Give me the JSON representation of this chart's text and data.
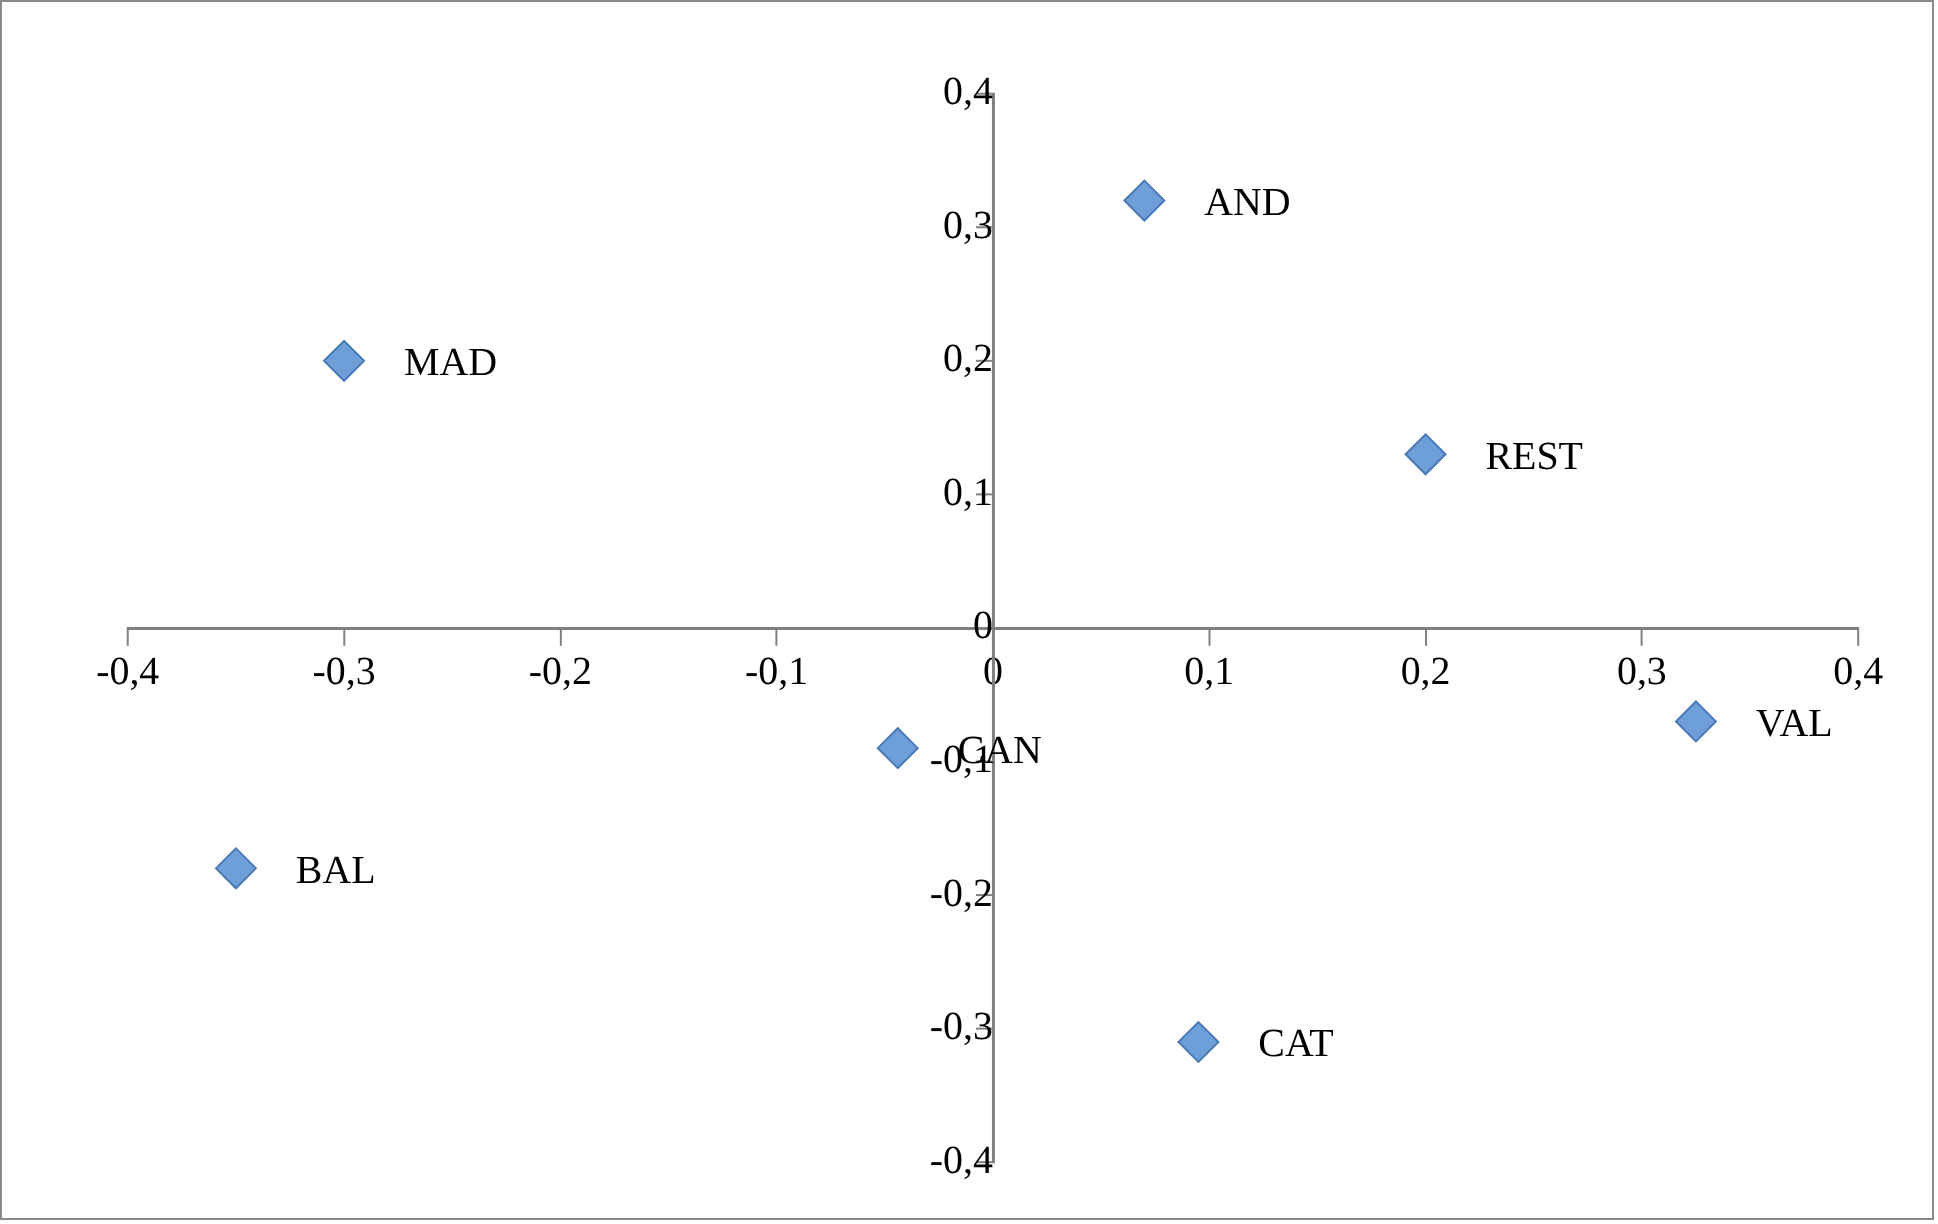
{
  "chart_data": {
    "type": "scatter",
    "x": [
      0.07,
      -0.3,
      0.2,
      -0.044,
      0.325,
      -0.35,
      0.095
    ],
    "values": [
      0.32,
      0.2,
      0.13,
      -0.09,
      -0.07,
      -0.18,
      -0.31
    ],
    "color": "#6f9fd8",
    "marker": "diamond",
    "xlim": [
      -0.4,
      0.4
    ],
    "ylim": [
      -0.4,
      0.4
    ],
    "xticks": [
      {
        "value": -0.4,
        "label": "-0,4"
      },
      {
        "value": -0.3,
        "label": "-0,3"
      },
      {
        "value": -0.2,
        "label": "-0,2"
      },
      {
        "value": -0.1,
        "label": "-0,1"
      },
      0,
      {
        "value": 0.1,
        "label": "0,1"
      },
      {
        "value": 0.2,
        "label": "0,2"
      },
      {
        "value": 0.3,
        "label": "0,3"
      },
      {
        "value": 0.4,
        "label": "0,4"
      }
    ],
    "yticks": [
      {
        "value": -0.4,
        "label": "-0,4"
      },
      {
        "value": -0.3,
        "label": "-0,3"
      },
      {
        "value": -0.2,
        "label": "-0,2"
      },
      {
        "value": -0.1,
        "label": "-0,1"
      },
      0,
      {
        "value": 0.1,
        "label": "0,1"
      },
      {
        "value": 0.2,
        "label": "0,2"
      },
      {
        "value": 0.3,
        "label": "0,3"
      },
      {
        "value": 0.4,
        "label": "0,4"
      }
    ],
    "grid": false,
    "annotations": [
      {
        "text": "AND",
        "x": 0.07,
        "y": 0.32
      },
      {
        "text": "MAD",
        "x": -0.3,
        "y": 0.2
      },
      {
        "text": "REST",
        "x": 0.2,
        "y": 0.13
      },
      {
        "text": "CAN",
        "x": -0.044,
        "y": -0.09
      },
      {
        "text": "VAL",
        "x": 0.325,
        "y": -0.07
      },
      {
        "text": "BAL",
        "x": -0.35,
        "y": -0.18
      },
      {
        "text": "CAT",
        "x": 0.095,
        "y": -0.31
      }
    ]
  }
}
